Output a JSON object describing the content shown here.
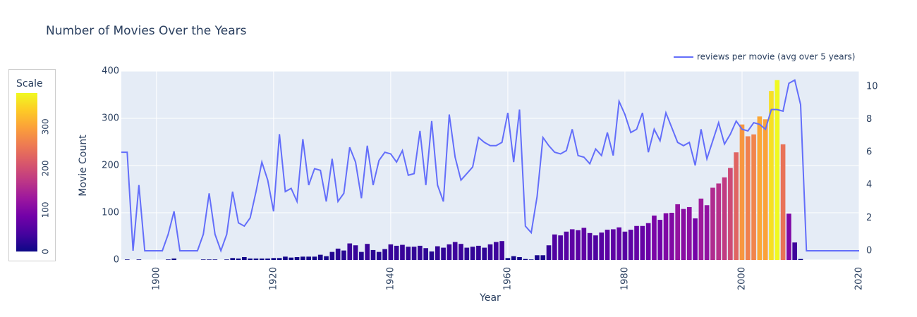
{
  "chart_data": {
    "type": "bar_line",
    "title": "Number of Movies Over the Years",
    "xlabel": "Year",
    "ylabel": "Movie Count",
    "colorbar_title": "Scale",
    "colorscale": [
      "#0d0887",
      "#46039f",
      "#7201a8",
      "#9c179e",
      "#bd3786",
      "#d8576b",
      "#ed7953",
      "#fb9f3a",
      "#fdca26",
      "#f0f921"
    ],
    "clim": [
      0,
      381
    ],
    "cticks": [
      0,
      100,
      200,
      300
    ],
    "xlim": [
      1894,
      2020
    ],
    "xticks": [
      1900,
      1920,
      1940,
      1960,
      1980,
      2000,
      2020
    ],
    "ylim": [
      0,
      400
    ],
    "yticks": [
      0,
      100,
      200,
      300,
      400
    ],
    "y2lim": [
      -0.56,
      10.94
    ],
    "y2ticks": [
      0,
      2,
      4,
      6,
      8,
      10
    ],
    "grid": true,
    "legend": "top-right",
    "series": [
      {
        "type": "bar",
        "x": [
          1895,
          1896,
          1897,
          1898,
          1899,
          1900,
          1901,
          1902,
          1903,
          1904,
          1905,
          1906,
          1907,
          1908,
          1909,
          1910,
          1911,
          1912,
          1913,
          1914,
          1915,
          1916,
          1917,
          1918,
          1919,
          1920,
          1921,
          1922,
          1923,
          1924,
          1925,
          1926,
          1927,
          1928,
          1929,
          1930,
          1931,
          1932,
          1933,
          1934,
          1935,
          1936,
          1937,
          1938,
          1939,
          1940,
          1941,
          1942,
          1943,
          1944,
          1945,
          1946,
          1947,
          1948,
          1949,
          1950,
          1951,
          1952,
          1953,
          1954,
          1955,
          1956,
          1957,
          1958,
          1959,
          1960,
          1961,
          1962,
          1963,
          1964,
          1965,
          1966,
          1967,
          1968,
          1969,
          1970,
          1971,
          1972,
          1973,
          1974,
          1975,
          1976,
          1977,
          1978,
          1979,
          1980,
          1981,
          1982,
          1983,
          1984,
          1985,
          1986,
          1987,
          1988,
          1989,
          1990,
          1991,
          1992,
          1993,
          1994,
          1995,
          1996,
          1997,
          1998,
          1999,
          2000,
          2001,
          2002,
          2003,
          2004,
          2005,
          2006,
          2007,
          2008,
          2009,
          2010,
          2011
        ],
        "values": [
          1,
          0,
          1,
          0,
          0,
          0,
          0,
          1,
          3,
          0,
          0,
          0,
          0,
          1,
          1,
          1,
          0,
          1,
          4,
          3,
          6,
          3,
          3,
          3,
          3,
          4,
          4,
          7,
          5,
          6,
          7,
          7,
          7,
          11,
          8,
          17,
          24,
          20,
          35,
          31,
          17,
          34,
          21,
          17,
          23,
          33,
          30,
          32,
          28,
          28,
          30,
          25,
          18,
          29,
          26,
          33,
          38,
          34,
          26,
          28,
          30,
          26,
          33,
          38,
          40,
          4,
          8,
          6,
          2,
          1,
          10,
          10,
          31,
          54,
          52,
          60,
          65,
          63,
          68,
          57,
          52,
          58,
          64,
          65,
          69,
          60,
          64,
          72,
          72,
          78,
          94,
          85,
          99,
          100,
          118,
          108,
          112,
          88,
          130,
          116,
          153,
          162,
          175,
          195,
          228,
          287,
          262,
          266,
          304,
          298,
          358,
          381,
          245,
          98,
          37,
          2,
          0
        ]
      },
      {
        "type": "line",
        "name": "reviews per movie (avg over 5 years)",
        "color": "#636efa",
        "axis": "y2",
        "x": [
          1894,
          1895,
          1896,
          1897,
          1898,
          1899,
          1900,
          1901,
          1902,
          1903,
          1904,
          1905,
          1906,
          1907,
          1908,
          1909,
          1910,
          1911,
          1912,
          1913,
          1914,
          1915,
          1916,
          1917,
          1918,
          1919,
          1920,
          1921,
          1922,
          1923,
          1924,
          1925,
          1926,
          1927,
          1928,
          1929,
          1930,
          1931,
          1932,
          1933,
          1934,
          1935,
          1936,
          1937,
          1938,
          1939,
          1940,
          1941,
          1942,
          1943,
          1944,
          1945,
          1946,
          1947,
          1948,
          1949,
          1950,
          1951,
          1952,
          1953,
          1954,
          1955,
          1956,
          1957,
          1958,
          1959,
          1960,
          1961,
          1962,
          1963,
          1964,
          1965,
          1966,
          1967,
          1968,
          1969,
          1970,
          1971,
          1972,
          1973,
          1974,
          1975,
          1976,
          1977,
          1978,
          1979,
          1980,
          1981,
          1982,
          1983,
          1984,
          1985,
          1986,
          1987,
          1988,
          1989,
          1990,
          1991,
          1992,
          1993,
          1994,
          1995,
          1996,
          1997,
          1998,
          1999,
          2000,
          2001,
          2002,
          2003,
          2004,
          2005,
          2006,
          2007,
          2008,
          2009,
          2010,
          2011,
          2012,
          2013,
          2014,
          2015,
          2016,
          2017,
          2018,
          2019,
          2020
        ],
        "values": [
          6.0,
          6.0,
          0,
          4.0,
          0,
          0,
          0,
          0,
          1.0,
          2.4,
          0,
          0,
          0,
          0,
          1.0,
          3.5,
          1.0,
          0,
          1.0,
          3.6,
          1.7,
          1.5,
          2.0,
          3.6,
          5.4,
          4.3,
          2.4,
          7.1,
          3.6,
          3.8,
          3.0,
          6.8,
          4.0,
          5.0,
          4.9,
          3.0,
          5.6,
          3.0,
          3.5,
          6.3,
          5.4,
          3.2,
          6.4,
          4.0,
          5.5,
          6.0,
          5.9,
          5.4,
          6.1,
          4.6,
          4.7,
          7.3,
          4.0,
          7.9,
          4.0,
          3.0,
          8.3,
          5.7,
          4.3,
          4.7,
          5.1,
          6.9,
          6.6,
          6.4,
          6.4,
          6.6,
          8.4,
          5.4,
          8.6,
          1.5,
          1.1,
          3.3,
          6.9,
          6.4,
          6.0,
          5.9,
          6.1,
          7.4,
          5.8,
          5.7,
          5.3,
          6.2,
          5.8,
          7.2,
          5.8,
          9.1,
          8.3,
          7.2,
          7.4,
          8.4,
          6.0,
          7.4,
          6.7,
          8.4,
          7.5,
          6.6,
          6.4,
          6.6,
          5.2,
          7.4,
          5.6,
          6.7,
          7.8,
          6.5,
          7.1,
          7.9,
          7.4,
          7.3,
          7.8,
          7.7,
          7.4,
          8.6,
          8.6,
          8.5,
          10.2,
          10.4,
          8.9,
          0,
          0,
          0,
          0,
          0,
          0,
          0,
          0,
          0,
          0
        ]
      }
    ]
  }
}
